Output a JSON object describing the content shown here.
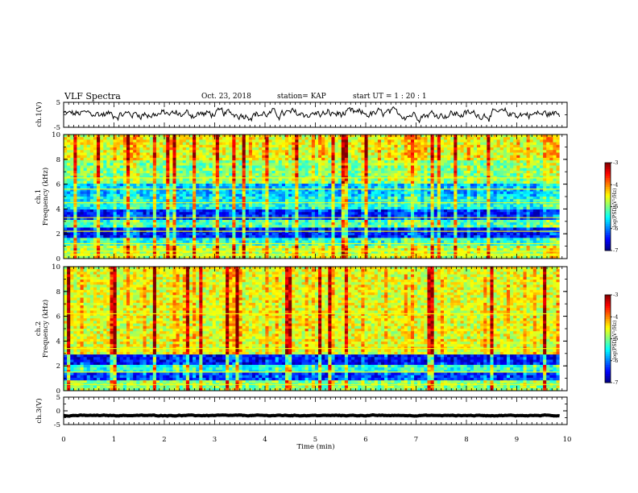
{
  "header": {
    "title": "VLF Spectra",
    "date": "Oct. 23, 2018",
    "station": "station= KAP",
    "start": "start  UT =   1 : 20 : 1"
  },
  "chart_data": [
    {
      "type": "line",
      "panel": "ch.1 waveform",
      "ylabel": "ch.1(V)",
      "ylim": [
        -5,
        5
      ],
      "yticks": [
        "5",
        "-5"
      ],
      "xlim": [
        0,
        10
      ],
      "trace_mean": 0.3,
      "trace_amplitude": 1.3,
      "trace_end_min": 9.85
    },
    {
      "type": "heatmap",
      "panel": "ch.1 spectrogram",
      "ylabel": [
        "ch.1",
        "Frequency (kHz)"
      ],
      "ylim": [
        0,
        10
      ],
      "yticks": [
        "0",
        "2",
        "4",
        "6",
        "8",
        "10"
      ],
      "xlim": [
        0,
        10
      ],
      "data_end_min": 9.85,
      "colorbar": {
        "label": "log(PSD)(V²/Hz)",
        "range": [
          -7,
          -3
        ],
        "ticks": [
          "-3",
          "-4",
          "-5",
          "-6",
          "-7"
        ]
      },
      "bands_kHz": [
        {
          "from": 0,
          "to": 1.0,
          "level": -4.8
        },
        {
          "from": 1.0,
          "to": 1.6,
          "level": -5.4
        },
        {
          "from": 1.6,
          "to": 2.4,
          "level": -6.5
        },
        {
          "from": 2.4,
          "to": 3.2,
          "level": -5.3
        },
        {
          "from": 3.2,
          "to": 4.0,
          "level": -6.4
        },
        {
          "from": 4.0,
          "to": 5.0,
          "level": -5.5
        },
        {
          "from": 5.0,
          "to": 6.0,
          "level": -5.8
        },
        {
          "from": 6.0,
          "to": 8.0,
          "level": -5.0
        },
        {
          "from": 8.0,
          "to": 10,
          "level": -4.6
        }
      ],
      "lines_kHz": [
        0.3,
        0.6,
        1.2,
        2.2,
        3.3,
        4.5,
        5.6,
        6.5
      ]
    },
    {
      "type": "heatmap",
      "panel": "ch.2 spectrogram",
      "ylabel": [
        "ch.2",
        "Frequency (kHz)"
      ],
      "ylim": [
        0,
        10
      ],
      "yticks": [
        "0",
        "2",
        "4",
        "6",
        "8",
        "10"
      ],
      "xlim": [
        0,
        10
      ],
      "data_end_min": 9.85,
      "colorbar": {
        "label": "log(PSD)(V²/Hz)",
        "range": [
          -7,
          -3
        ],
        "ticks": [
          "-3",
          "-4",
          "-5",
          "-6",
          "-7"
        ]
      },
      "bands_kHz": [
        {
          "from": 0,
          "to": 0.8,
          "level": -5.0
        },
        {
          "from": 0.8,
          "to": 1.4,
          "level": -6.3
        },
        {
          "from": 1.4,
          "to": 2.0,
          "level": -5.4
        },
        {
          "from": 2.0,
          "to": 3.0,
          "level": -6.5
        },
        {
          "from": 3.0,
          "to": 10,
          "level": -4.6
        }
      ],
      "lines_kHz": [
        0.5,
        1.5,
        3.4,
        6.2
      ]
    },
    {
      "type": "line",
      "panel": "ch.3 waveform",
      "ylabel": "ch.3(V)",
      "ylim": [
        -5,
        5
      ],
      "yticks": [
        "5",
        "0",
        "-5"
      ],
      "xlim": [
        0,
        10
      ],
      "trace_mean": -1.7,
      "trace_amplitude": 0.1,
      "trace_end_min": 9.85
    }
  ],
  "xaxis": {
    "label": "Time (min)",
    "ticks": [
      "0",
      "1",
      "2",
      "3",
      "4",
      "5",
      "6",
      "7",
      "8",
      "9",
      "10"
    ]
  }
}
